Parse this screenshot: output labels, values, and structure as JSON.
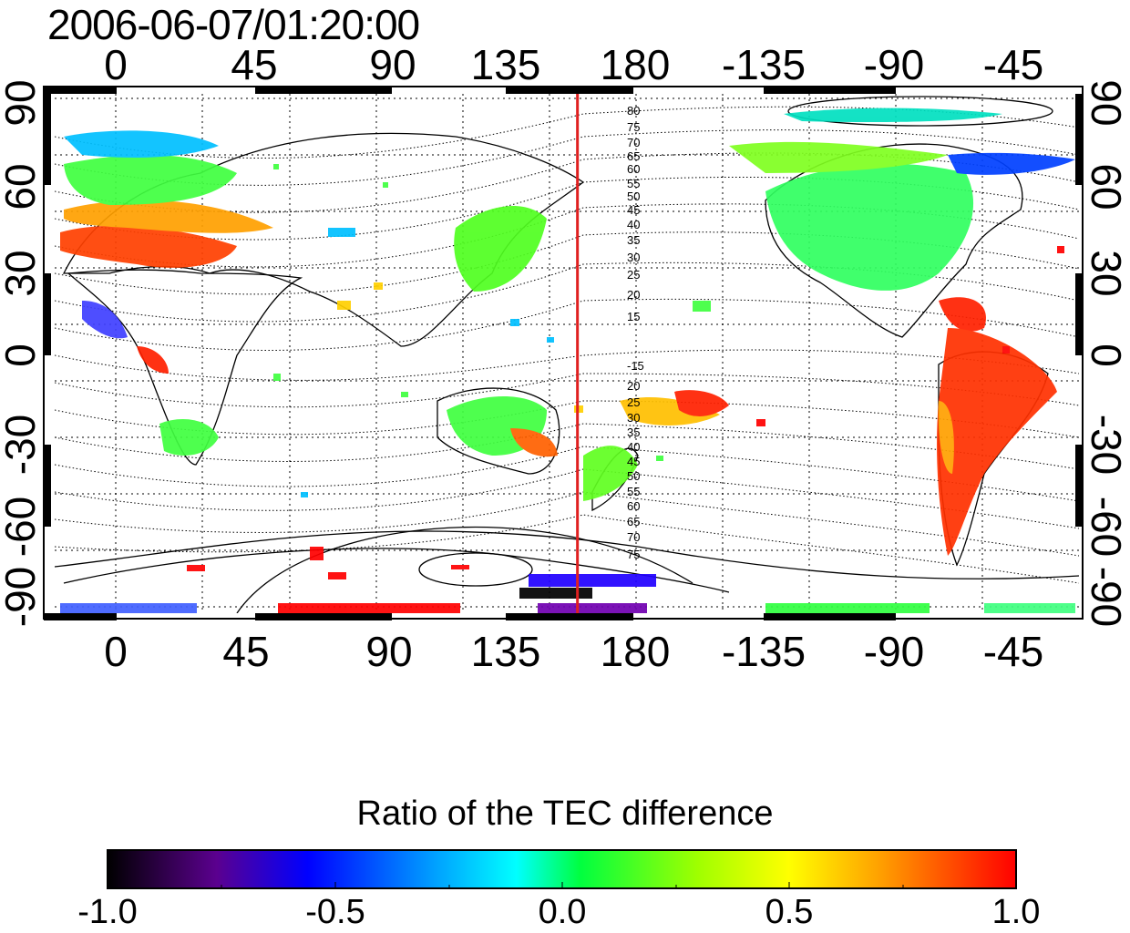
{
  "title": "2006-06-07/01:20:00",
  "map": {
    "lon_ticks": [
      "0",
      "45",
      "90",
      "135",
      "180",
      "-135",
      "-90",
      "-45"
    ],
    "lat_ticks": [
      "90",
      "60",
      "30",
      "0",
      "-30",
      "-60",
      "-90"
    ],
    "contour_labels_north": [
      "80",
      "75",
      "70",
      "65",
      "60",
      "55",
      "50",
      "45",
      "40",
      "35",
      "30",
      "25",
      "20",
      "15"
    ],
    "contour_labels_south": [
      "-15",
      "20",
      "25",
      "30",
      "35",
      "40",
      "45",
      "50",
      "55",
      "60",
      "65",
      "70",
      "75"
    ],
    "marker_longitude": 160,
    "marker_color": "#e02020"
  },
  "colorbar": {
    "title": "Ratio of the TEC difference",
    "ticks": [
      "-1.0",
      "-0.5",
      "0.0",
      "0.5",
      "1.0"
    ],
    "range": [
      -1.0,
      1.0
    ],
    "colormap": [
      "#000000",
      "#5b008f",
      "#0000ff",
      "#00a0ff",
      "#00ffff",
      "#00ff40",
      "#a0ff00",
      "#ffff00",
      "#ffa000",
      "#ff0000"
    ]
  }
}
